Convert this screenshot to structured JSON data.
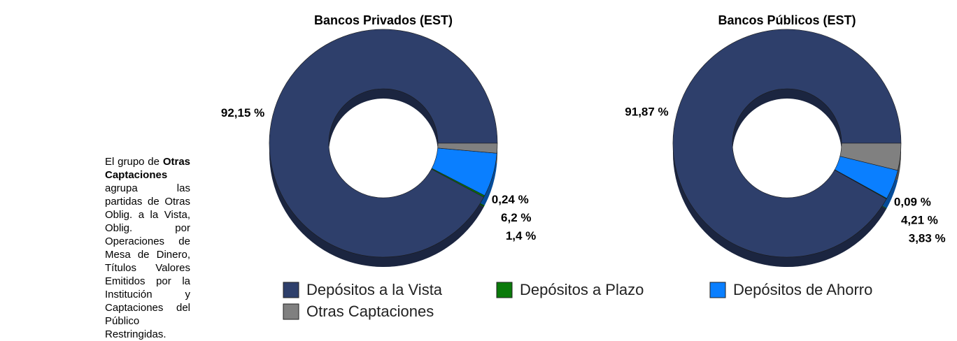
{
  "note": {
    "before": "El grupo de",
    "bold": "Otras Captaciones",
    "after": "agrupa las partidas de Otras Oblig. a la Vista, Oblig. por Operaciones de Mesa de Dinero, Títulos Valores Emitidos por la Institución y Captaciones del Público Restringidas."
  },
  "chart_data": [
    {
      "type": "pie",
      "donut": true,
      "title": "Bancos Privados (EST)",
      "categories": [
        "Depósitos a la Vista",
        "Depósitos a Plazo",
        "Depósitos de Ahorro",
        "Otras Captaciones"
      ],
      "colors": [
        "#2e3f6b",
        "#0a7a0a",
        "#0a7fff",
        "#808080"
      ],
      "values": [
        92.15,
        0.24,
        6.2,
        1.4
      ],
      "value_labels": [
        "92,15 %",
        "0,24 %",
        "6,2 %",
        "1,4 %"
      ]
    },
    {
      "type": "pie",
      "donut": true,
      "title": "Bancos Públicos (EST)",
      "categories": [
        "Depósitos a la Vista",
        "Depósitos a Plazo",
        "Depósitos de Ahorro",
        "Otras Captaciones"
      ],
      "colors": [
        "#2e3f6b",
        "#0a7a0a",
        "#0a7fff",
        "#808080"
      ],
      "values": [
        91.87,
        0.09,
        4.21,
        3.83
      ],
      "value_labels": [
        "91,87 %",
        "0,09 %",
        "4,21 %",
        "3,83 %"
      ]
    }
  ]
}
